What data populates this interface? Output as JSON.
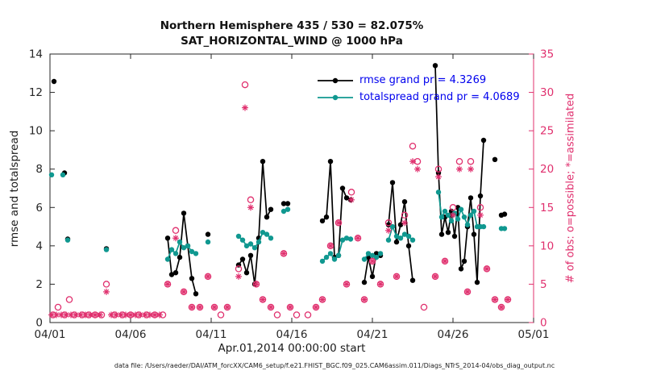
{
  "chart_data": {
    "type": "line",
    "title1": "Northern Hemisphere 435 / 530 = 82.075%",
    "title2": "SAT_HORIZONTAL_WIND @ 1000 hPa",
    "xlabel": "Apr.01,2014 00:00:00 start",
    "ylabel_left": "rmse and totalspread",
    "ylabel_right": "# of obs: o=possible; *=assimilated",
    "caption": "data file: /Users/raeder/DAI/ATM_forcXX/CAM6_setup/f.e21.FHIST_BGC.f09_025.CAM6assim.011/Diags_NTrS_2014-04/obs_diag_output.nc",
    "grid": "off",
    "legend_position": "top-center-inside",
    "xlim": [
      1,
      31
    ],
    "ylim_left": [
      0,
      14
    ],
    "ylim_right": [
      0,
      35
    ],
    "xticks": [
      {
        "v": 1,
        "label": "04/01"
      },
      {
        "v": 6,
        "label": "04/06"
      },
      {
        "v": 11,
        "label": "04/11"
      },
      {
        "v": 16,
        "label": "04/16"
      },
      {
        "v": 21,
        "label": "04/21"
      },
      {
        "v": 26,
        "label": "04/26"
      },
      {
        "v": 31,
        "label": "05/01"
      }
    ],
    "yticks_left": [
      0,
      2,
      4,
      6,
      8,
      10,
      12,
      14
    ],
    "yticks_right": [
      0,
      5,
      10,
      15,
      20,
      25,
      30,
      35
    ],
    "colors": {
      "rmse": "#000000",
      "totalspread": "#109890",
      "obs": "#e0306e",
      "legend_text": "#0000ee",
      "axis": "#262626"
    },
    "series": [
      {
        "name": "rmse grand pr = 4.3269",
        "type": "line",
        "axis": "left",
        "color": "#000000",
        "marker": "dot",
        "segments": [
          [
            [
              1.25,
              12.57
            ]
          ],
          [
            [
              1.9,
              7.8
            ]
          ],
          [
            [
              2.1,
              4.35
            ]
          ],
          [
            [
              4.5,
              3.85
            ]
          ],
          [
            [
              8.3,
              4.4
            ],
            [
              8.55,
              2.5
            ],
            [
              8.8,
              2.6
            ],
            [
              9.05,
              3.4
            ],
            [
              9.3,
              5.7
            ],
            [
              9.55,
              4.0
            ],
            [
              9.8,
              2.3
            ],
            [
              10.05,
              1.5
            ]
          ],
          [
            [
              10.8,
              4.6
            ]
          ],
          [
            [
              12.7,
              3.0
            ],
            [
              12.95,
              3.3
            ],
            [
              13.2,
              2.6
            ],
            [
              13.45,
              3.5
            ],
            [
              13.7,
              2.0
            ],
            [
              13.95,
              4.4
            ],
            [
              14.2,
              8.4
            ],
            [
              14.45,
              5.5
            ],
            [
              14.7,
              5.9
            ]
          ],
          [
            [
              15.5,
              6.2
            ],
            [
              15.75,
              6.2
            ]
          ],
          [
            [
              17.9,
              5.3
            ],
            [
              18.15,
              5.5
            ],
            [
              18.4,
              8.4
            ],
            [
              18.65,
              3.4
            ],
            [
              18.9,
              3.5
            ],
            [
              19.15,
              7.0
            ],
            [
              19.4,
              6.5
            ],
            [
              19.65,
              6.4
            ]
          ],
          [
            [
              20.5,
              2.1
            ],
            [
              20.75,
              3.4
            ],
            [
              21.0,
              2.4
            ],
            [
              21.25,
              3.6
            ],
            [
              21.5,
              3.5
            ]
          ],
          [
            [
              22.0,
              5.1
            ],
            [
              22.25,
              7.3
            ],
            [
              22.5,
              4.2
            ],
            [
              22.75,
              5.1
            ],
            [
              23.0,
              6.3
            ],
            [
              23.25,
              4.0
            ],
            [
              23.5,
              2.2
            ]
          ],
          [
            [
              24.9,
              13.4
            ],
            [
              25.1,
              7.8
            ],
            [
              25.3,
              4.6
            ],
            [
              25.5,
              5.5
            ],
            [
              25.7,
              4.7
            ],
            [
              25.9,
              5.8
            ],
            [
              26.1,
              4.5
            ],
            [
              26.3,
              6.0
            ],
            [
              26.5,
              2.8
            ],
            [
              26.7,
              3.2
            ],
            [
              26.9,
              5.0
            ],
            [
              27.1,
              6.5
            ],
            [
              27.3,
              4.6
            ],
            [
              27.5,
              2.1
            ],
            [
              27.7,
              6.6
            ],
            [
              27.9,
              9.5
            ]
          ],
          [
            [
              28.6,
              8.5
            ]
          ],
          [
            [
              29.0,
              5.6
            ],
            [
              29.2,
              5.65
            ]
          ]
        ]
      },
      {
        "name": "totalspread grand pr = 4.0689",
        "type": "line",
        "axis": "left",
        "color": "#109890",
        "marker": "dot",
        "segments": [
          [
            [
              1.1,
              7.7
            ]
          ],
          [
            [
              1.8,
              7.7
            ]
          ],
          [
            [
              2.1,
              4.3
            ]
          ],
          [
            [
              4.5,
              3.8
            ]
          ],
          [
            [
              8.3,
              3.3
            ],
            [
              8.55,
              3.8
            ],
            [
              8.8,
              3.6
            ],
            [
              9.05,
              4.2
            ],
            [
              9.3,
              3.9
            ],
            [
              9.55,
              4.0
            ],
            [
              9.8,
              3.7
            ],
            [
              10.05,
              3.6
            ]
          ],
          [
            [
              10.8,
              4.2
            ]
          ],
          [
            [
              12.7,
              4.5
            ],
            [
              12.95,
              4.3
            ],
            [
              13.2,
              4.0
            ],
            [
              13.45,
              4.1
            ],
            [
              13.7,
              3.9
            ],
            [
              13.95,
              4.2
            ],
            [
              14.2,
              4.7
            ],
            [
              14.45,
              4.6
            ],
            [
              14.7,
              4.4
            ]
          ],
          [
            [
              15.5,
              5.8
            ],
            [
              15.75,
              5.9
            ]
          ],
          [
            [
              17.9,
              3.2
            ],
            [
              18.15,
              3.4
            ],
            [
              18.4,
              3.6
            ],
            [
              18.65,
              3.3
            ],
            [
              18.9,
              3.5
            ],
            [
              19.15,
              4.3
            ],
            [
              19.4,
              4.4
            ],
            [
              19.65,
              4.35
            ]
          ],
          [
            [
              20.5,
              3.3
            ],
            [
              20.75,
              3.6
            ],
            [
              21.0,
              3.5
            ],
            [
              21.25,
              3.4
            ],
            [
              21.5,
              3.6
            ]
          ],
          [
            [
              22.0,
              4.3
            ],
            [
              22.25,
              5.0
            ],
            [
              22.5,
              4.5
            ],
            [
              22.75,
              4.4
            ],
            [
              23.0,
              4.6
            ],
            [
              23.25,
              4.5
            ],
            [
              23.5,
              4.3
            ]
          ],
          [
            [
              25.1,
              6.8
            ],
            [
              25.3,
              5.5
            ],
            [
              25.5,
              5.8
            ],
            [
              25.7,
              5.6
            ],
            [
              25.9,
              5.3
            ],
            [
              26.1,
              5.7
            ],
            [
              26.3,
              5.4
            ],
            [
              26.5,
              5.9
            ],
            [
              26.7,
              5.5
            ],
            [
              26.9,
              5.1
            ],
            [
              27.1,
              5.6
            ],
            [
              27.3,
              5.8
            ],
            [
              27.5,
              5.0
            ],
            [
              27.7,
              5.0
            ],
            [
              27.9,
              5.0
            ]
          ],
          [
            [
              29.0,
              4.9
            ],
            [
              29.2,
              4.9
            ]
          ]
        ]
      },
      {
        "name": "possible",
        "type": "scatter",
        "axis": "right",
        "color": "#e0306e",
        "marker": "circle",
        "points": [
          [
            1.2,
            1
          ],
          [
            1.5,
            2
          ],
          [
            1.9,
            1
          ],
          [
            2.2,
            3
          ],
          [
            2.5,
            1
          ],
          [
            3.0,
            1
          ],
          [
            3.4,
            1
          ],
          [
            3.8,
            1
          ],
          [
            4.2,
            1
          ],
          [
            4.5,
            5
          ],
          [
            5.0,
            1
          ],
          [
            5.5,
            1
          ],
          [
            6.0,
            1
          ],
          [
            6.5,
            1
          ],
          [
            7.0,
            1
          ],
          [
            7.5,
            1
          ],
          [
            8.0,
            1
          ],
          [
            8.3,
            5
          ],
          [
            8.8,
            12
          ],
          [
            9.3,
            4
          ],
          [
            9.8,
            2
          ],
          [
            10.3,
            2
          ],
          [
            10.8,
            6
          ],
          [
            11.2,
            2
          ],
          [
            11.6,
            1
          ],
          [
            12.0,
            2
          ],
          [
            12.7,
            7
          ],
          [
            13.1,
            31
          ],
          [
            13.45,
            16
          ],
          [
            13.8,
            5
          ],
          [
            14.2,
            3
          ],
          [
            14.7,
            2
          ],
          [
            15.1,
            1
          ],
          [
            15.5,
            9
          ],
          [
            15.9,
            2
          ],
          [
            16.3,
            1
          ],
          [
            17.0,
            1
          ],
          [
            17.5,
            2
          ],
          [
            17.9,
            3
          ],
          [
            18.4,
            10
          ],
          [
            18.9,
            13
          ],
          [
            19.4,
            5
          ],
          [
            19.7,
            17
          ],
          [
            20.1,
            11
          ],
          [
            20.5,
            3
          ],
          [
            21.0,
            8
          ],
          [
            21.5,
            5
          ],
          [
            22.0,
            13
          ],
          [
            22.5,
            6
          ],
          [
            23.0,
            14
          ],
          [
            23.5,
            23
          ],
          [
            23.8,
            21
          ],
          [
            24.2,
            2
          ],
          [
            24.9,
            6
          ],
          [
            25.1,
            20
          ],
          [
            25.5,
            8
          ],
          [
            26.0,
            15
          ],
          [
            26.4,
            21
          ],
          [
            26.9,
            4
          ],
          [
            27.1,
            21
          ],
          [
            27.7,
            15
          ],
          [
            28.1,
            7
          ],
          [
            28.6,
            3
          ],
          [
            29.0,
            2
          ],
          [
            29.4,
            3
          ]
        ]
      },
      {
        "name": "assimilated",
        "type": "scatter",
        "axis": "right",
        "color": "#e0306e",
        "marker": "asterisk",
        "points": [
          [
            1.1,
            1
          ],
          [
            1.4,
            1
          ],
          [
            1.7,
            1
          ],
          [
            2.0,
            1
          ],
          [
            2.3,
            1
          ],
          [
            2.6,
            1
          ],
          [
            2.9,
            1
          ],
          [
            3.2,
            1
          ],
          [
            3.5,
            1
          ],
          [
            3.8,
            1
          ],
          [
            4.1,
            1
          ],
          [
            4.5,
            4
          ],
          [
            4.8,
            1
          ],
          [
            5.1,
            1
          ],
          [
            5.4,
            1
          ],
          [
            5.7,
            1
          ],
          [
            6.0,
            1
          ],
          [
            6.3,
            1
          ],
          [
            6.6,
            1
          ],
          [
            6.9,
            1
          ],
          [
            7.2,
            1
          ],
          [
            7.5,
            1
          ],
          [
            7.8,
            1
          ],
          [
            8.3,
            5
          ],
          [
            8.8,
            11
          ],
          [
            9.3,
            4
          ],
          [
            9.8,
            2
          ],
          [
            10.3,
            2
          ],
          [
            10.8,
            6
          ],
          [
            11.2,
            2
          ],
          [
            12.0,
            2
          ],
          [
            12.7,
            6
          ],
          [
            13.1,
            28
          ],
          [
            13.45,
            15
          ],
          [
            13.8,
            5
          ],
          [
            14.2,
            3
          ],
          [
            14.7,
            2
          ],
          [
            15.5,
            9
          ],
          [
            15.9,
            2
          ],
          [
            17.5,
            2
          ],
          [
            17.9,
            3
          ],
          [
            18.4,
            10
          ],
          [
            18.9,
            13
          ],
          [
            19.4,
            5
          ],
          [
            19.7,
            16
          ],
          [
            20.1,
            11
          ],
          [
            20.5,
            3
          ],
          [
            21.0,
            8
          ],
          [
            21.5,
            5
          ],
          [
            22.0,
            12
          ],
          [
            22.5,
            6
          ],
          [
            23.0,
            13
          ],
          [
            23.5,
            21
          ],
          [
            23.8,
            20
          ],
          [
            24.9,
            6
          ],
          [
            25.1,
            19
          ],
          [
            25.5,
            8
          ],
          [
            26.0,
            14
          ],
          [
            26.4,
            20
          ],
          [
            26.9,
            4
          ],
          [
            27.1,
            20
          ],
          [
            27.7,
            14
          ],
          [
            28.1,
            7
          ],
          [
            28.6,
            3
          ],
          [
            29.0,
            2
          ],
          [
            29.4,
            3
          ]
        ]
      }
    ]
  }
}
